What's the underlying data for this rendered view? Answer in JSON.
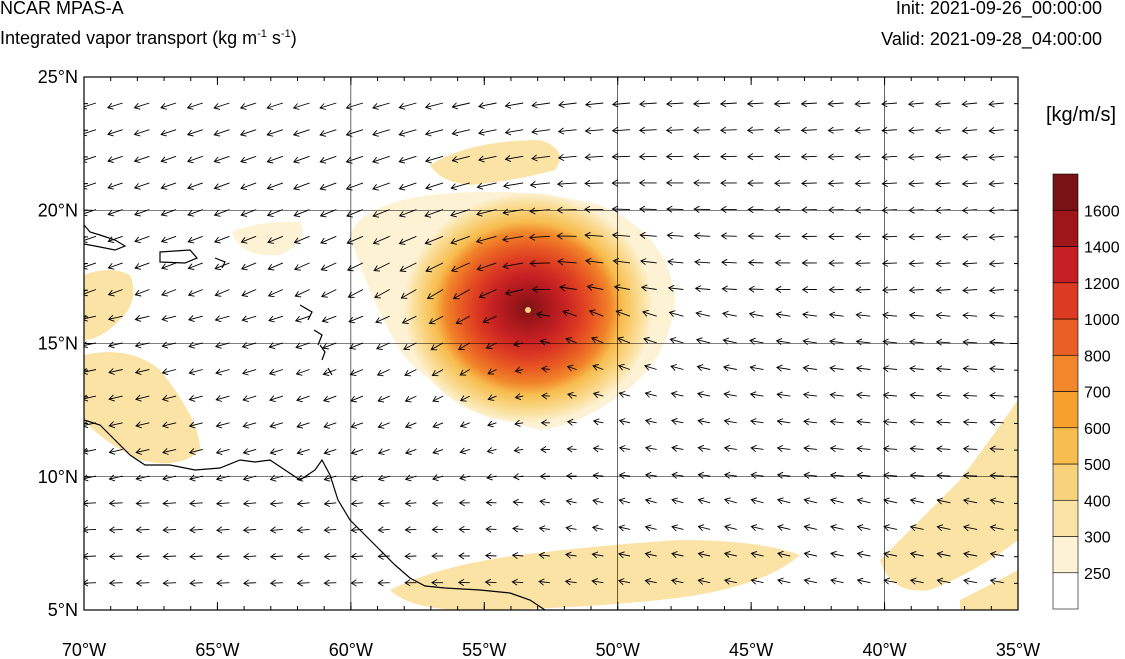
{
  "header": {
    "model_title": "NCAR MPAS-A",
    "field_title_main": "Integrated vapor transport (kg m",
    "field_title_sup1": "-1",
    "field_title_mid": " s",
    "field_title_sup2": "-1",
    "field_title_end": ")",
    "init_label": "Init: 2021-09-26_00:00:00",
    "valid_label": "Valid: 2021-09-28_04:00:00"
  },
  "map": {
    "projection": "cylindrical-equidistant",
    "lon_range": [
      -70,
      -35
    ],
    "lat_range": [
      5,
      25
    ],
    "lon_ticks": [
      "70°W",
      "65°W",
      "60°W",
      "55°W",
      "50°W",
      "45°W",
      "40°W",
      "35°W"
    ],
    "lat_ticks": [
      "25°N",
      "20°N",
      "15°N",
      "10°N",
      "5°N"
    ],
    "grid_lines_lon": [
      -60,
      -50,
      -40
    ],
    "grid_lines_lat": [
      20,
      15,
      10
    ],
    "storm_center": {
      "lon": -53.3,
      "lat": 16.2
    },
    "vector_field": "easterly trade flow with cyclonic circulation around storm center"
  },
  "colorbar": {
    "units_label": "[kg/m/s]",
    "levels": [
      "250",
      "300",
      "400",
      "500",
      "600",
      "700",
      "800",
      "1000",
      "1200",
      "1400",
      "1600"
    ],
    "colors": [
      "#ffffff",
      "#fdf2d4",
      "#fbe3a6",
      "#f9d27c",
      "#f7bd4e",
      "#f6a12e",
      "#f2862a",
      "#ea5f23",
      "#dc3a22",
      "#c52023",
      "#9f161a",
      "#7a1313"
    ]
  }
}
